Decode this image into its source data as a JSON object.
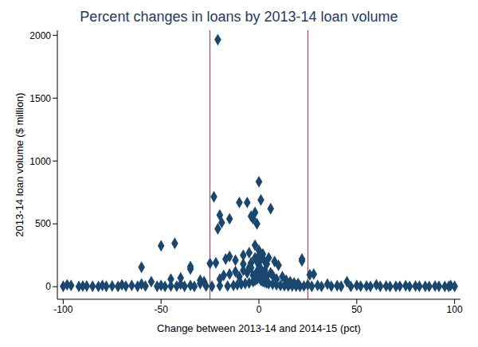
{
  "chart_data": {
    "type": "scatter",
    "title": "Percent changes in loans by 2013-14 loan volume",
    "x_label": "Change between 2013-14 and 2014-15 (pct)",
    "y_label": "2013-14 loan volume ($ million)",
    "color": "#1a476f",
    "marker": "diamond",
    "xlim": [
      -103,
      103
    ],
    "xticks": [
      -100,
      -50,
      0,
      50,
      100
    ],
    "ylim": [
      -100,
      2040
    ],
    "yticks": [
      0,
      500,
      1000,
      1500,
      2000
    ],
    "vlines": {
      "values": [
        -25,
        25
      ],
      "color": "#b5223b"
    },
    "x": [
      -21,
      -23,
      -20,
      -21,
      -19,
      -15,
      -10,
      -6,
      -4,
      -3,
      -1,
      0,
      1,
      -2,
      6,
      -50,
      -43,
      -35,
      -60,
      -35,
      -25,
      -22,
      -17,
      -15,
      -12,
      -8,
      -5,
      -2,
      0,
      2,
      5,
      8,
      10,
      -8,
      3,
      -5,
      22,
      22,
      26,
      28,
      -40,
      -45,
      -30,
      -55,
      -70,
      -80,
      -90,
      -98,
      -96,
      -100,
      -85,
      -75,
      -65,
      -60,
      -50,
      -45,
      -40,
      -35,
      -30,
      -28,
      -20,
      -18,
      -15,
      -12,
      -10,
      -8,
      -6,
      -4,
      -3,
      -1,
      0,
      1,
      2,
      3,
      4,
      6,
      7,
      9,
      12,
      14,
      16,
      18,
      20,
      25,
      30,
      35,
      40,
      45,
      50,
      55,
      60,
      65,
      70,
      75,
      80,
      85,
      90,
      95,
      98,
      100,
      -92,
      -88,
      -82,
      -78,
      -72,
      -68,
      -62,
      -58,
      -52,
      -48,
      -42,
      -38,
      -33,
      -27,
      -24,
      -20,
      -16,
      -13,
      -11,
      -9,
      -7,
      -5,
      -3,
      -2,
      -1,
      0,
      1,
      2,
      3,
      4,
      5,
      7,
      9,
      11,
      13,
      15,
      17,
      19,
      21,
      23,
      27,
      32,
      37,
      42,
      47,
      52,
      57,
      62,
      67,
      72,
      77,
      82,
      87,
      92,
      97,
      -1,
      1,
      -2,
      0,
      -4,
      4
    ],
    "values": [
      1965,
      715,
      570,
      460,
      510,
      540,
      670,
      670,
      560,
      540,
      500,
      835,
      690,
      590,
      620,
      325,
      345,
      160,
      155,
      140,
      185,
      190,
      220,
      240,
      210,
      250,
      270,
      330,
      290,
      260,
      230,
      200,
      170,
      180,
      200,
      150,
      220,
      205,
      95,
      100,
      70,
      60,
      50,
      40,
      15,
      10,
      5,
      15,
      10,
      3,
      3,
      5,
      10,
      20,
      10,
      5,
      20,
      10,
      25,
      40,
      60,
      90,
      100,
      120,
      80,
      130,
      110,
      150,
      90,
      120,
      170,
      140,
      100,
      130,
      80,
      110,
      90,
      60,
      80,
      50,
      40,
      30,
      25,
      15,
      10,
      20,
      8,
      40,
      10,
      5,
      15,
      5,
      3,
      8,
      5,
      3,
      5,
      2,
      10,
      3,
      2,
      5,
      2,
      3,
      2,
      4,
      3,
      5,
      3,
      2,
      4,
      3,
      2,
      5,
      3,
      8,
      5,
      10,
      15,
      20,
      25,
      30,
      40,
      50,
      60,
      70,
      50,
      40,
      35,
      30,
      25,
      20,
      15,
      10,
      8,
      5,
      6,
      4,
      3,
      5,
      3,
      2,
      4,
      3,
      2,
      4,
      2,
      3,
      2,
      4,
      2,
      3,
      2,
      3,
      2,
      200,
      220,
      230,
      250,
      190,
      180
    ]
  }
}
